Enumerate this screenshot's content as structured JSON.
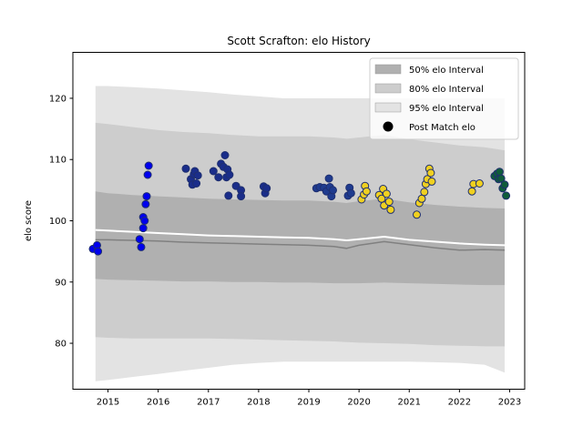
{
  "chart_data": {
    "type": "scatter",
    "title": "Scott Scrafton: elo History",
    "xlabel": "",
    "ylabel": "elo score",
    "xlim": [
      2014.3,
      2023.3
    ],
    "ylim": [
      72.5,
      127.5
    ],
    "x_ticks": [
      2015,
      2016,
      2017,
      2018,
      2019,
      2020,
      2021,
      2022,
      2023
    ],
    "y_ticks": [
      80,
      90,
      100,
      110,
      120
    ],
    "legend_position": "top-right",
    "colors": {
      "band_95": "#e3e3e3",
      "band_80": "#cdcdcd",
      "band_50": "#b0b0b0",
      "median_line": "#808080",
      "mean_line": "#ffffff",
      "point_edge": "#1f2f6f"
    },
    "legend": [
      {
        "label": "50% elo Interval",
        "kind": "band50"
      },
      {
        "label": "80% elo Interval",
        "kind": "band80"
      },
      {
        "label": "95% elo Interval",
        "kind": "band95"
      },
      {
        "label": "Post Match elo",
        "kind": "point"
      }
    ],
    "bands": {
      "x": [
        2014.75,
        2015.0,
        2015.5,
        2016.0,
        2016.5,
        2017.0,
        2017.5,
        2018.0,
        2018.5,
        2019.0,
        2019.5,
        2019.75,
        2020.0,
        2020.5,
        2021.0,
        2021.5,
        2022.0,
        2022.5,
        2022.9
      ],
      "p95_hi": [
        122.0,
        122.0,
        121.8,
        121.6,
        121.3,
        121.0,
        120.6,
        120.3,
        120.0,
        120.0,
        120.0,
        120.0,
        120.0,
        120.0,
        120.0,
        120.0,
        120.0,
        120.0,
        120.0
      ],
      "p80_hi": [
        116.0,
        115.8,
        115.3,
        114.8,
        114.5,
        114.3,
        114.0,
        113.8,
        113.8,
        113.8,
        113.6,
        113.4,
        113.6,
        114.0,
        113.3,
        112.8,
        112.3,
        112.0,
        111.5
      ],
      "p50_hi": [
        104.8,
        104.5,
        104.2,
        104.0,
        103.8,
        103.6,
        103.5,
        103.4,
        103.3,
        103.3,
        103.1,
        102.9,
        103.2,
        103.6,
        103.0,
        102.6,
        102.3,
        102.1,
        102.0
      ],
      "mean": [
        98.5,
        98.4,
        98.2,
        98.0,
        97.8,
        97.6,
        97.5,
        97.4,
        97.3,
        97.2,
        97.0,
        96.8,
        97.0,
        97.4,
        96.9,
        96.6,
        96.3,
        96.1,
        96.0
      ],
      "median": [
        96.9,
        96.9,
        96.8,
        96.7,
        96.5,
        96.4,
        96.3,
        96.2,
        96.1,
        96.0,
        95.8,
        95.5,
        96.0,
        96.6,
        96.1,
        95.6,
        95.2,
        95.3,
        95.2
      ],
      "p50_lo": [
        90.5,
        90.4,
        90.3,
        90.2,
        90.1,
        90.1,
        90.0,
        90.0,
        89.9,
        89.9,
        89.8,
        89.8,
        89.8,
        89.9,
        89.8,
        89.7,
        89.6,
        89.5,
        89.5
      ],
      "p80_lo": [
        81.0,
        80.9,
        80.8,
        80.8,
        80.8,
        80.8,
        80.7,
        80.6,
        80.5,
        80.4,
        80.3,
        80.2,
        80.1,
        80.0,
        79.9,
        79.7,
        79.6,
        79.5,
        79.5
      ],
      "p95_lo": [
        73.8,
        74.0,
        74.5,
        75.0,
        75.5,
        76.0,
        76.5,
        76.8,
        77.0,
        77.0,
        77.0,
        77.0,
        77.0,
        77.0,
        77.0,
        76.9,
        76.8,
        76.5,
        75.2
      ]
    },
    "series": [
      {
        "color": "#0000ee",
        "points": [
          [
            2014.7,
            95.4
          ],
          [
            2014.78,
            96.0
          ],
          [
            2014.8,
            95.0
          ],
          [
            2015.63,
            97.0
          ],
          [
            2015.66,
            95.7
          ],
          [
            2015.7,
            98.8
          ],
          [
            2015.7,
            100.6
          ],
          [
            2015.73,
            100.0
          ],
          [
            2015.75,
            102.7
          ],
          [
            2015.77,
            104.0
          ],
          [
            2015.79,
            107.5
          ],
          [
            2015.81,
            109.0
          ]
        ]
      },
      {
        "color": "#1a2d8a",
        "points": [
          [
            2016.55,
            108.5
          ],
          [
            2016.65,
            106.8
          ],
          [
            2016.68,
            105.9
          ],
          [
            2016.71,
            107.6
          ],
          [
            2016.73,
            108.1
          ],
          [
            2016.76,
            106.1
          ],
          [
            2016.79,
            107.4
          ],
          [
            2017.1,
            108.1
          ],
          [
            2017.2,
            107.1
          ],
          [
            2017.25,
            109.3
          ],
          [
            2017.3,
            108.8
          ],
          [
            2017.33,
            110.7
          ],
          [
            2017.36,
            107.1
          ],
          [
            2017.38,
            108.4
          ],
          [
            2017.4,
            104.1
          ],
          [
            2017.42,
            107.5
          ],
          [
            2017.55,
            105.7
          ],
          [
            2017.65,
            105.0
          ],
          [
            2017.65,
            104.0
          ],
          [
            2018.1,
            105.6
          ],
          [
            2018.13,
            104.5
          ],
          [
            2018.16,
            105.3
          ]
        ]
      },
      {
        "color": "#1f3b8f",
        "points": [
          [
            2019.15,
            105.3
          ],
          [
            2019.22,
            105.5
          ],
          [
            2019.3,
            105.4
          ],
          [
            2019.35,
            104.8
          ],
          [
            2019.4,
            106.9
          ],
          [
            2019.42,
            105.5
          ],
          [
            2019.45,
            104.0
          ],
          [
            2019.48,
            105.0
          ],
          [
            2019.78,
            104.1
          ],
          [
            2019.81,
            105.4
          ],
          [
            2019.84,
            104.5
          ]
        ]
      },
      {
        "color": "#f0d020",
        "points": [
          [
            2020.05,
            103.5
          ],
          [
            2020.1,
            104.3
          ],
          [
            2020.12,
            105.7
          ],
          [
            2020.15,
            104.8
          ],
          [
            2020.4,
            104.2
          ],
          [
            2020.45,
            103.6
          ],
          [
            2020.48,
            105.2
          ],
          [
            2020.5,
            102.5
          ],
          [
            2020.55,
            104.4
          ],
          [
            2020.6,
            103.1
          ],
          [
            2020.63,
            101.8
          ],
          [
            2021.15,
            101.0
          ],
          [
            2021.2,
            102.9
          ],
          [
            2021.25,
            103.6
          ],
          [
            2021.3,
            104.7
          ],
          [
            2021.33,
            106.0
          ],
          [
            2021.36,
            106.8
          ],
          [
            2021.4,
            108.5
          ],
          [
            2021.43,
            107.8
          ],
          [
            2021.45,
            106.4
          ],
          [
            2022.25,
            104.8
          ],
          [
            2022.28,
            106.0
          ],
          [
            2022.4,
            106.1
          ]
        ]
      },
      {
        "color": "#0f5c3a",
        "points": [
          [
            2022.7,
            107.3
          ],
          [
            2022.75,
            107.7
          ],
          [
            2022.78,
            106.8
          ],
          [
            2022.8,
            108.0
          ],
          [
            2022.83,
            106.9
          ],
          [
            2022.86,
            105.3
          ],
          [
            2022.9,
            105.9
          ],
          [
            2022.93,
            104.1
          ]
        ]
      }
    ]
  }
}
